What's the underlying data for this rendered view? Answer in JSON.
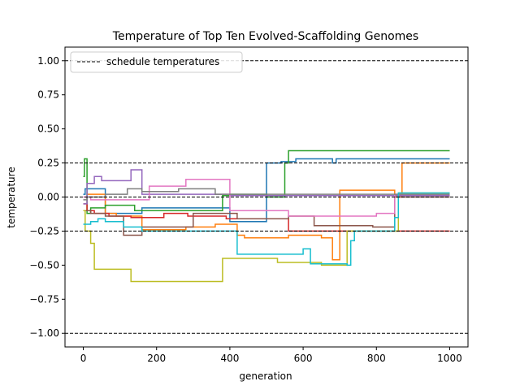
{
  "chart_data": {
    "type": "line",
    "title": "Temperature of Top Ten Evolved-Scaffolding Genomes",
    "xlabel": "generation",
    "ylabel": "temperature",
    "xlim": [
      -50,
      1050
    ],
    "ylim": [
      -1.1,
      1.1
    ],
    "xticks": [
      0,
      200,
      400,
      600,
      800,
      1000
    ],
    "yticks": [
      -1.0,
      -0.75,
      -0.5,
      -0.25,
      0.0,
      0.25,
      0.5,
      0.75,
      1.0
    ],
    "xtick_labels": [
      "0",
      "200",
      "400",
      "600",
      "800",
      "1000"
    ],
    "ytick_labels": [
      "−1.00",
      "−0.75",
      "−0.50",
      "−0.25",
      "0.00",
      "0.25",
      "0.50",
      "0.75",
      "1.00"
    ],
    "legend": {
      "placement": "upper-left",
      "entries": [
        "schedule temperatures"
      ]
    },
    "schedule_temperatures": [
      1.0,
      0.25,
      0.0,
      -0.25,
      -1.0
    ],
    "series": [
      {
        "color": "#1f77b4",
        "x": [
          0,
          5,
          20,
          60,
          160,
          220,
          300,
          400,
          500,
          540,
          580,
          680,
          690,
          850,
          1000
        ],
        "y": [
          0.02,
          0.06,
          0.06,
          -0.12,
          -0.08,
          -0.08,
          -0.08,
          -0.18,
          0.25,
          0.26,
          0.28,
          0.25,
          0.28,
          0.28,
          0.28
        ]
      },
      {
        "color": "#ff7f0e",
        "x": [
          0,
          10,
          60,
          90,
          160,
          280,
          360,
          420,
          440,
          560,
          650,
          680,
          700,
          780,
          850,
          870,
          1000
        ],
        "y": [
          -0.1,
          0.02,
          -0.12,
          -0.14,
          -0.24,
          -0.22,
          -0.2,
          -0.28,
          -0.3,
          -0.28,
          -0.3,
          -0.46,
          0.05,
          0.05,
          0.0,
          0.25,
          0.25
        ]
      },
      {
        "color": "#2ca02c",
        "x": [
          0,
          3,
          10,
          20,
          60,
          140,
          260,
          380,
          400,
          500,
          550,
          560,
          1000
        ],
        "y": [
          0.15,
          0.28,
          -0.12,
          -0.08,
          -0.06,
          -0.1,
          -0.1,
          0.01,
          0.02,
          0.0,
          0.25,
          0.34,
          0.34
        ]
      },
      {
        "color": "#d62728",
        "x": [
          0,
          10,
          30,
          70,
          130,
          220,
          285,
          390,
          560,
          700,
          1000
        ],
        "y": [
          -0.05,
          -0.1,
          -0.12,
          -0.14,
          -0.15,
          -0.12,
          -0.14,
          -0.16,
          -0.25,
          -0.25,
          -0.25
        ]
      },
      {
        "color": "#9467bd",
        "x": [
          0,
          10,
          30,
          50,
          120,
          130,
          160,
          400,
          1000
        ],
        "y": [
          -0.05,
          0.1,
          0.15,
          0.12,
          0.12,
          0.2,
          0.02,
          0.01,
          0.01
        ]
      },
      {
        "color": "#8c564b",
        "x": [
          0,
          20,
          60,
          110,
          160,
          300,
          420,
          560,
          630,
          690,
          790,
          850,
          1000
        ],
        "y": [
          -0.1,
          -0.12,
          -0.14,
          -0.28,
          -0.22,
          -0.12,
          -0.16,
          -0.14,
          -0.21,
          -0.21,
          -0.22,
          0.0,
          0.0
        ]
      },
      {
        "color": "#e377c2",
        "x": [
          0,
          20,
          60,
          180,
          270,
          280,
          400,
          560,
          700,
          800,
          850,
          1000
        ],
        "y": [
          0.0,
          -0.02,
          -0.02,
          0.08,
          0.08,
          0.13,
          -0.1,
          -0.14,
          -0.14,
          -0.12,
          0.02,
          0.02
        ]
      },
      {
        "color": "#7f7f7f",
        "x": [
          0,
          10,
          30,
          60,
          120,
          160,
          260,
          360,
          500,
          1000
        ],
        "y": [
          -0.02,
          0.0,
          0.0,
          0.02,
          0.06,
          0.04,
          0.06,
          0.02,
          0.02,
          0.02
        ]
      },
      {
        "color": "#bcbd22",
        "x": [
          0,
          5,
          20,
          30,
          130,
          380,
          480,
          530,
          650,
          720,
          860,
          1000
        ],
        "y": [
          -0.1,
          -0.25,
          -0.34,
          -0.53,
          -0.62,
          -0.45,
          -0.45,
          -0.48,
          -0.5,
          -0.25,
          0.03,
          0.03
        ]
      },
      {
        "color": "#17becf",
        "x": [
          0,
          20,
          40,
          60,
          110,
          160,
          400,
          420,
          580,
          600,
          620,
          720,
          730,
          740,
          840,
          850,
          860,
          1000
        ],
        "y": [
          -0.2,
          -0.18,
          -0.16,
          -0.18,
          -0.22,
          -0.25,
          -0.25,
          -0.42,
          -0.42,
          -0.38,
          -0.49,
          -0.5,
          -0.32,
          -0.25,
          -0.25,
          -0.15,
          0.03,
          0.03
        ]
      }
    ]
  }
}
